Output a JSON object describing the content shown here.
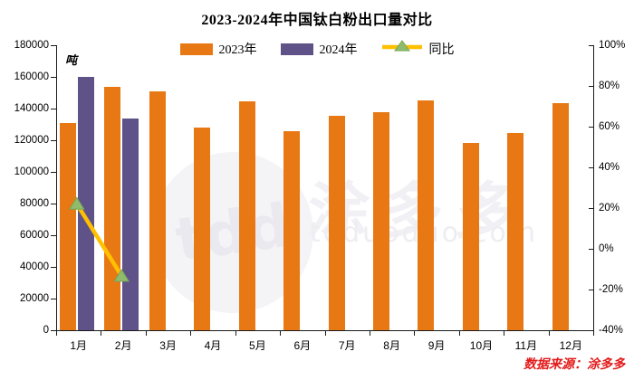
{
  "title": "2023-2024年中国钛白粉出口量对比",
  "source": "数据来源：涂多多",
  "watermark": {
    "logo": "tdd",
    "cn": "涂多多",
    "domain": "toduoduo.com"
  },
  "colors": {
    "bar_2023": "#e87814",
    "bar_2024": "#5e5289",
    "yoy_line": "#ffc000",
    "yoy_marker": "#8fbc6c",
    "yoy_marker_edge": "#79a457",
    "source_text": "#e31b1b",
    "axis": "#1a1a1a"
  },
  "legend": [
    {
      "label": "2023年",
      "type": "swatch",
      "color": "#e87814"
    },
    {
      "label": "2024年",
      "type": "swatch",
      "color": "#5e5289"
    },
    {
      "label": "同比",
      "type": "line-triangle",
      "color": "#ffc000",
      "marker_color": "#8fbc6c"
    }
  ],
  "chart_data": {
    "type": "bar",
    "title": "2023-2024年中国钛白粉出口量对比",
    "categories": [
      "1月",
      "2月",
      "3月",
      "4月",
      "5月",
      "6月",
      "7月",
      "8月",
      "9月",
      "10月",
      "11月",
      "12月"
    ],
    "series": [
      {
        "name": "2023年",
        "type": "bar",
        "axis": "left",
        "color": "#e87814",
        "values": [
          131000,
          154000,
          151000,
          128000,
          144500,
          125500,
          135500,
          137500,
          145000,
          118500,
          124500,
          143500
        ]
      },
      {
        "name": "2024年",
        "type": "bar",
        "axis": "left",
        "color": "#5e5289",
        "values": [
          160000,
          133500,
          null,
          null,
          null,
          null,
          null,
          null,
          null,
          null,
          null,
          null
        ]
      },
      {
        "name": "同比",
        "type": "line",
        "axis": "right",
        "color": "#ffc000",
        "marker": "triangle",
        "marker_color": "#8fbc6c",
        "values": [
          22.1,
          -13.3,
          null,
          null,
          null,
          null,
          null,
          null,
          null,
          null,
          null,
          null
        ]
      }
    ],
    "left_axis": {
      "unit": "吨",
      "min": 0,
      "max": 180000,
      "step": 20000,
      "tick_labels": [
        "0",
        "20000",
        "40000",
        "60000",
        "80000",
        "100000",
        "120000",
        "140000",
        "160000",
        "180000"
      ]
    },
    "right_axis": {
      "min": -40,
      "max": 100,
      "step": 20,
      "tick_labels": [
        "-40%",
        "-20%",
        "0%",
        "20%",
        "40%",
        "60%",
        "80%",
        "100%"
      ]
    },
    "grid": false,
    "legend_position": "top"
  }
}
